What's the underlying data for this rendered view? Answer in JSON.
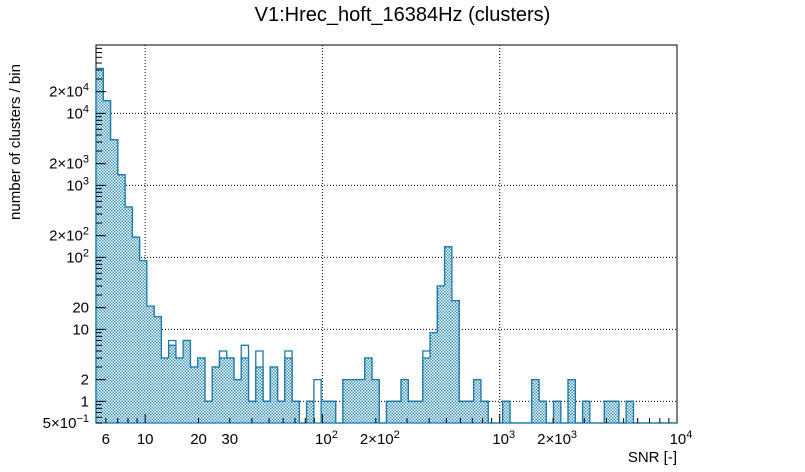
{
  "title": "V1:Hrec_hoft_16384Hz (clusters)",
  "chart_data": {
    "type": "bar",
    "subtype": "histogram-log-log",
    "title": "V1:Hrec_hoft_16384Hz (clusters)",
    "xlabel": "SNR [-]",
    "ylabel": "number of clusters / bin",
    "x_scale": "log",
    "y_scale": "log",
    "x_range": [
      5.28,
      10000
    ],
    "y_range": [
      0.5,
      89000
    ],
    "n_bins": 80,
    "bin_spacing": "log",
    "grid": "dotted",
    "grid_x": [
      10,
      100,
      1000
    ],
    "grid_y": [
      1,
      10,
      100,
      1000,
      10000
    ],
    "filled_values": [
      42000,
      15000,
      4300,
      1400,
      500,
      190,
      90,
      21,
      15,
      4,
      6,
      4,
      7,
      3,
      4,
      1,
      3,
      4,
      4,
      2,
      4,
      1,
      3,
      1,
      3,
      1,
      4,
      1,
      0,
      1,
      0,
      1,
      1,
      0,
      2,
      2,
      2,
      4,
      2,
      0,
      1,
      1,
      2,
      1,
      1,
      4,
      9,
      40,
      140,
      25,
      1,
      1,
      2,
      1,
      0,
      0,
      1,
      0,
      0,
      0,
      2,
      1,
      0,
      1,
      0,
      2,
      0,
      1,
      0,
      0,
      1,
      1,
      0,
      1,
      0,
      0,
      0,
      0,
      0,
      0
    ],
    "outline_extras": {
      "10": 7,
      "17": 5,
      "20": 6,
      "22": 5,
      "26": 5,
      "30": 2,
      "45": 5
    },
    "x_ticks": [
      {
        "v": 6,
        "m": "6"
      },
      {
        "v": 10,
        "m": "10"
      },
      {
        "v": 20,
        "m": "20"
      },
      {
        "v": 30,
        "m": "30"
      },
      {
        "v": 100,
        "m": "10",
        "e": "2"
      },
      {
        "v": 200,
        "m": "2×10",
        "e": "2"
      },
      {
        "v": 1000,
        "m": "10",
        "e": "3"
      },
      {
        "v": 2000,
        "m": "2×10",
        "e": "3"
      },
      {
        "v": 10000,
        "m": "10",
        "e": "4"
      }
    ],
    "y_ticks": [
      {
        "v": 0.5,
        "m": "5×10",
        "e": "−1"
      },
      {
        "v": 1,
        "m": "1"
      },
      {
        "v": 2,
        "m": "2"
      },
      {
        "v": 10,
        "m": "10"
      },
      {
        "v": 20,
        "m": "20"
      },
      {
        "v": 100,
        "m": "10",
        "e": "2"
      },
      {
        "v": 200,
        "m": "2×10",
        "e": "2"
      },
      {
        "v": 1000,
        "m": "10",
        "e": "3"
      },
      {
        "v": 2000,
        "m": "2×10",
        "e": "3"
      },
      {
        "v": 10000,
        "m": "10",
        "e": "4"
      },
      {
        "v": 20000,
        "m": "2×10",
        "e": "4"
      }
    ],
    "colors": {
      "line": "#1b7aa8",
      "fill_pattern": "#3d94bc",
      "text": "#000000",
      "grid": "#000000",
      "frame": "#000000",
      "background": "#ffffff"
    }
  }
}
